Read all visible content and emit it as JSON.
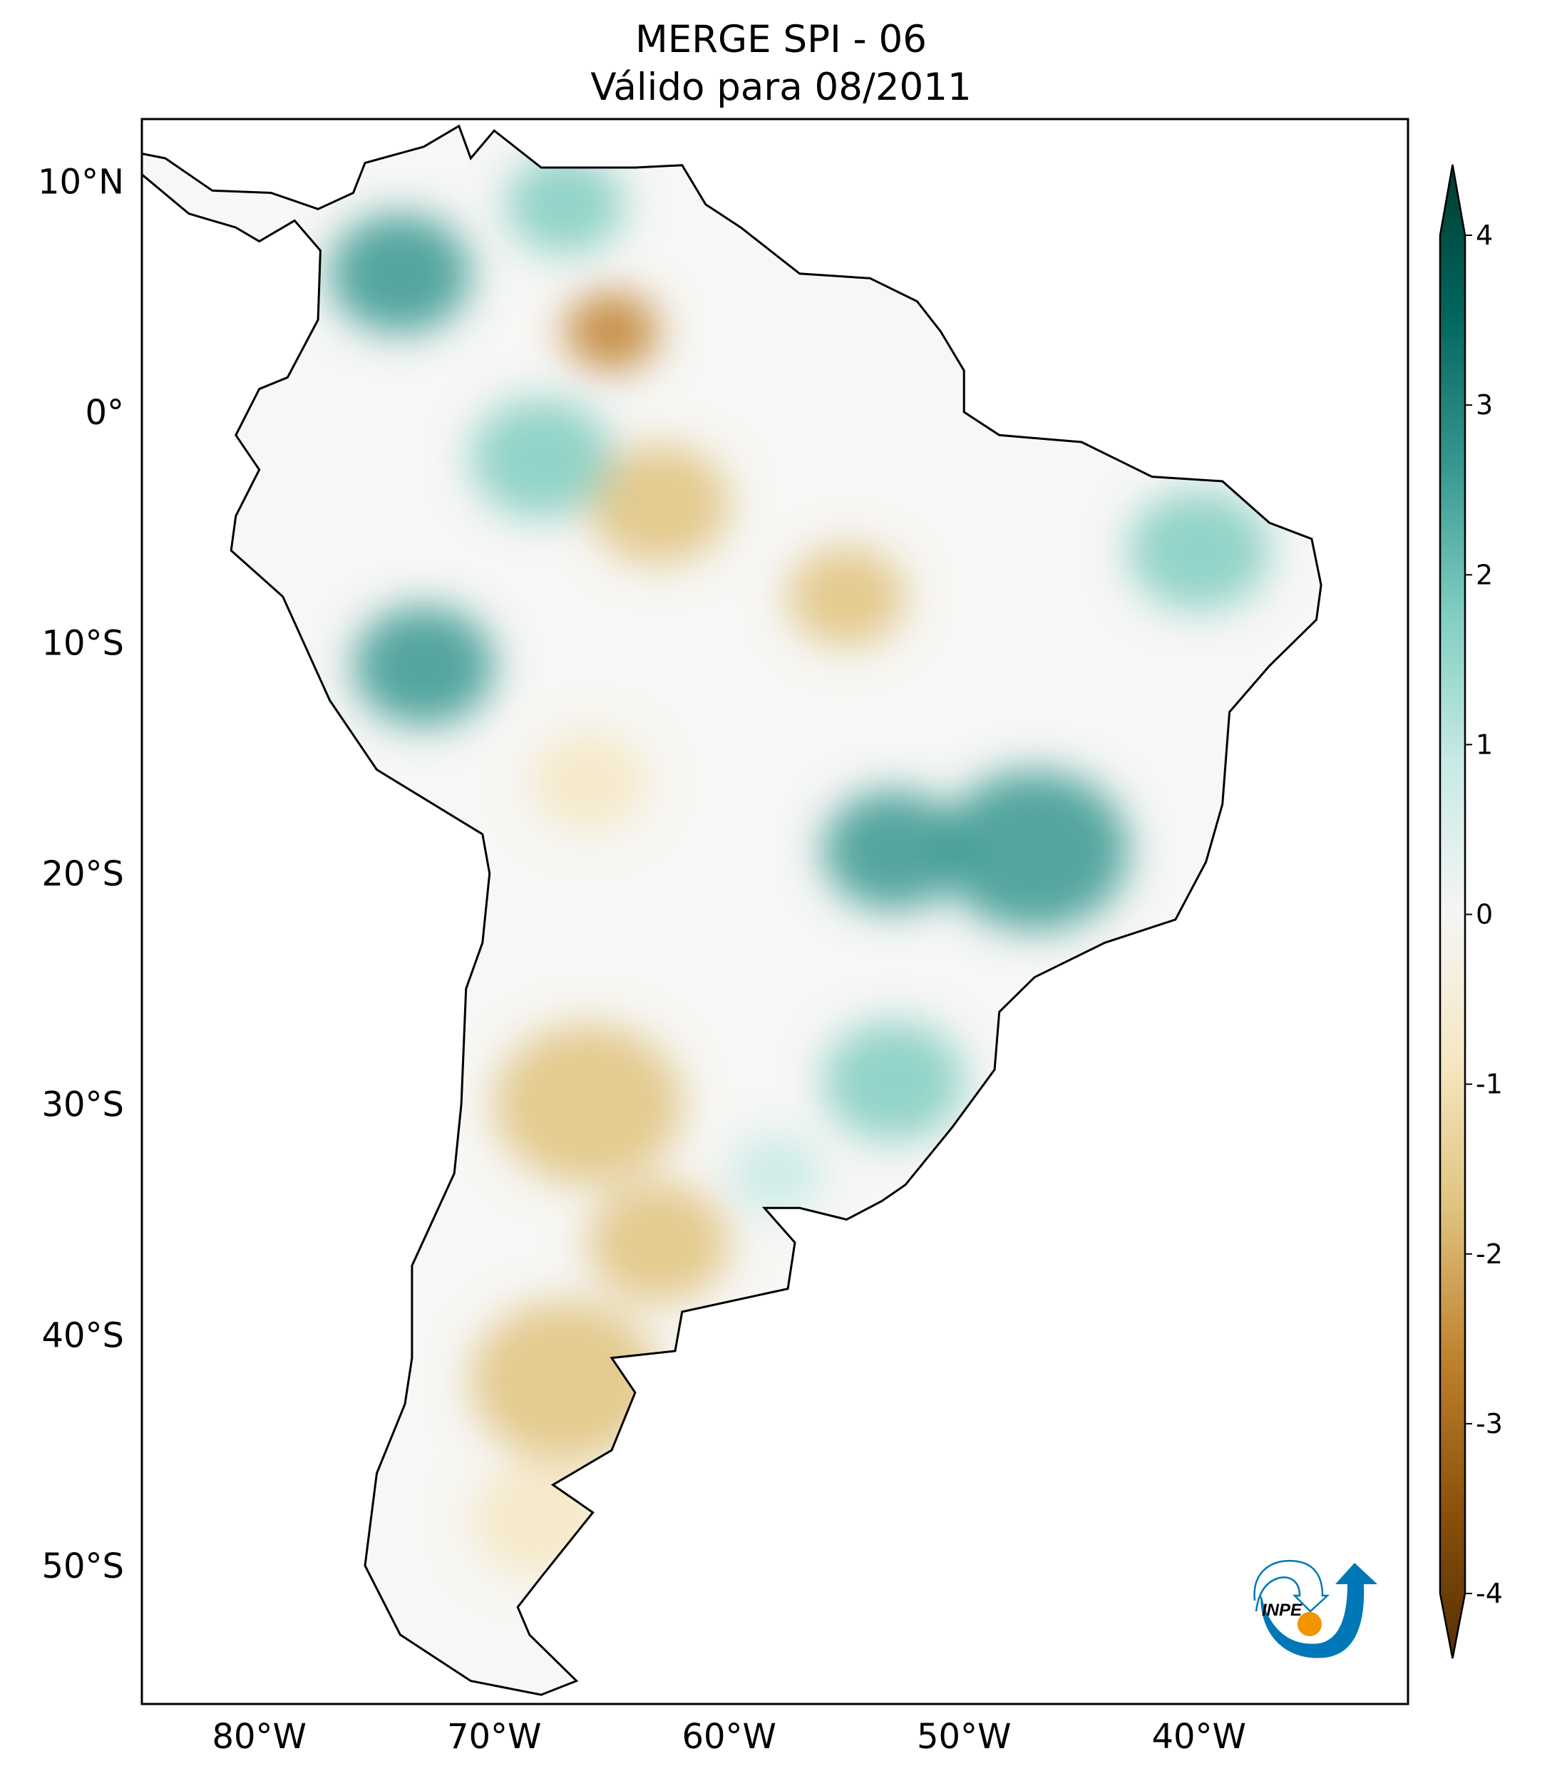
{
  "title": {
    "line1": "MERGE   SPI - 06",
    "line2": "Válido para 08/2011"
  },
  "map": {
    "extent": {
      "lon": [
        -85,
        -31.1
      ],
      "lat": [
        -56,
        12.7
      ]
    },
    "lat_ticks": [
      {
        "value": 10,
        "label": "10°N"
      },
      {
        "value": 0,
        "label": "0°"
      },
      {
        "value": -10,
        "label": "10°S"
      },
      {
        "value": -20,
        "label": "20°S"
      },
      {
        "value": -30,
        "label": "30°S"
      },
      {
        "value": -40,
        "label": "40°S"
      },
      {
        "value": -50,
        "label": "50°S"
      }
    ],
    "lon_ticks": [
      {
        "value": -80,
        "label": "80°W"
      },
      {
        "value": -70,
        "label": "70°W"
      },
      {
        "value": -60,
        "label": "60°W"
      },
      {
        "value": -50,
        "label": "50°W"
      },
      {
        "value": -40,
        "label": "40°W"
      }
    ],
    "variable": "SPI-6",
    "colormap": "BrBG"
  },
  "colorbar": {
    "range": [
      -4,
      4
    ],
    "extend": "both",
    "ticks": [
      {
        "value": 4,
        "label": "4"
      },
      {
        "value": 3,
        "label": "3"
      },
      {
        "value": 2,
        "label": "2"
      },
      {
        "value": 1,
        "label": "1"
      },
      {
        "value": 0,
        "label": "0"
      },
      {
        "value": -1,
        "label": "-1"
      },
      {
        "value": -2,
        "label": "-2"
      },
      {
        "value": -3,
        "label": "-3"
      },
      {
        "value": -4,
        "label": "-4"
      }
    ],
    "colors": [
      "#543005",
      "#8c510a",
      "#bf812d",
      "#dfc27d",
      "#f6e8c3",
      "#f5f5f5",
      "#c7eae5",
      "#80cdc1",
      "#35978f",
      "#01665e",
      "#003c30"
    ]
  },
  "logo": {
    "text": "INPE",
    "blue": "#0077b6",
    "orange": "#f29400"
  }
}
